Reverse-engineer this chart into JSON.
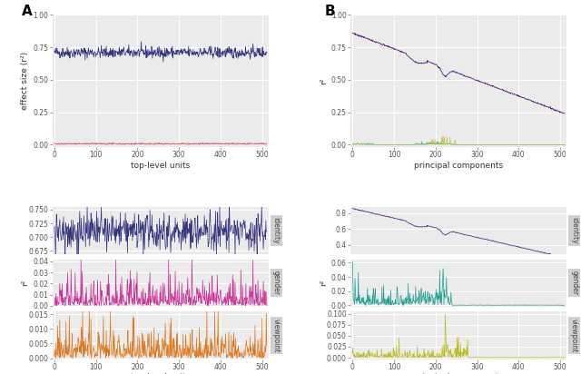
{
  "panel_A_top": {
    "identity_color": "#353580",
    "other_color": "#E07820",
    "gender_color": "#CC3399",
    "identity_mean": 0.71,
    "identity_std": 0.022,
    "other_mean": 0.005,
    "other_std": 0.004,
    "gender_mean": 0.006,
    "gender_std": 0.004,
    "n_units": 512,
    "ylim": [
      -0.02,
      1.0
    ],
    "yticks": [
      0.0,
      0.25,
      0.5,
      0.75,
      1.0
    ],
    "ytick_labels": [
      "0.00",
      "0.25",
      "0.50",
      "0.75",
      "1.00"
    ],
    "ylabel": "effect size (r²)",
    "xlabel": "top-level units",
    "xticks": [
      0,
      100,
      200,
      300,
      400,
      500
    ]
  },
  "panel_A_bottom": {
    "identity_color": "#353580",
    "gender_color": "#CC3399",
    "viewpoint_color": "#E07820",
    "n_units": 512,
    "identity_mean": 0.71,
    "identity_std": 0.018,
    "identity_ylim": [
      0.668,
      0.755
    ],
    "identity_yticks": [
      0.675,
      0.7,
      0.725,
      0.75
    ],
    "identity_ytick_labels": [
      "0.675",
      "0.700",
      "0.725",
      "0.750"
    ],
    "gender_mean": 0.008,
    "gender_std": 0.006,
    "gender_ylim": [
      -0.001,
      0.042
    ],
    "gender_yticks": [
      0.0,
      0.01,
      0.02,
      0.03,
      0.04
    ],
    "gender_ytick_labels": [
      "0.00",
      "0.01",
      "0.02",
      "0.03",
      "0.04"
    ],
    "viewpoint_mean": 0.004,
    "viewpoint_std": 0.003,
    "viewpoint_ylim": [
      -0.0003,
      0.016
    ],
    "viewpoint_yticks": [
      0.0,
      0.005,
      0.01,
      0.015
    ],
    "viewpoint_ytick_labels": [
      "0.000",
      "0.005",
      "0.010",
      "0.015"
    ],
    "ylabel": "r²",
    "xlabel": "top-level units",
    "xticks": [
      0,
      100,
      200,
      300,
      400,
      500
    ]
  },
  "panel_B_top": {
    "identity_color": "#4B1A7A",
    "teal_color": "#20A090",
    "yellow_color": "#BBBB20",
    "n_pcs": 512,
    "ylim": [
      -0.02,
      1.0
    ],
    "yticks": [
      0.0,
      0.25,
      0.5,
      0.75,
      1.0
    ],
    "ytick_labels": [
      "0.00",
      "0.25",
      "0.50",
      "0.75",
      "1.00"
    ],
    "ylabel": "r²",
    "xlabel": "principal components",
    "xticks": [
      0,
      100,
      200,
      300,
      400,
      500
    ]
  },
  "panel_B_bottom": {
    "identity_color": "#4B1A7A",
    "gender_color": "#20A090",
    "viewpoint_color": "#BBBB20",
    "n_pcs": 512,
    "identity_ylim": [
      0.28,
      0.88
    ],
    "identity_yticks": [
      0.4,
      0.6,
      0.8
    ],
    "identity_ytick_labels": [
      "0.4",
      "0.6",
      "0.8"
    ],
    "gender_ylim": [
      -0.002,
      0.065
    ],
    "gender_yticks": [
      0.0,
      0.02,
      0.04,
      0.06
    ],
    "gender_ytick_labels": [
      "0.00",
      "0.02",
      "0.04",
      "0.06"
    ],
    "viewpoint_ylim": [
      -0.003,
      0.105
    ],
    "viewpoint_yticks": [
      0.0,
      0.025,
      0.05,
      0.075,
      0.1
    ],
    "viewpoint_ytick_labels": [
      "0.000",
      "0.025",
      "0.050",
      "0.075",
      "0.100"
    ],
    "ylabel": "r²",
    "xlabel": "principal components",
    "xticks": [
      0,
      100,
      200,
      300,
      400,
      500
    ]
  },
  "background_color": "#EBEBEB",
  "grid_color": "#FFFFFF",
  "strip_color": "#D0D0D0",
  "strip_text_color": "#444444",
  "tick_color": "#555555",
  "label_fontsize": 6.5,
  "tick_fontsize": 5.5,
  "strip_fontsize": 5.5
}
